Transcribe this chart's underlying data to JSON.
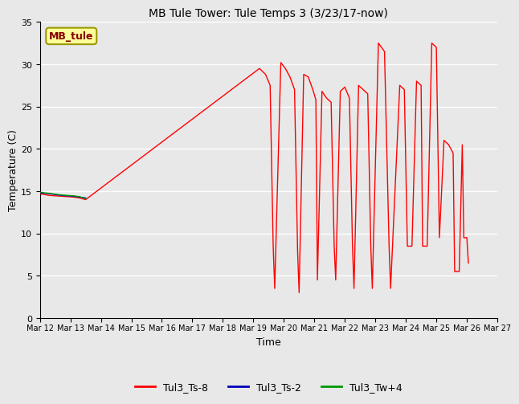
{
  "title": "MB Tule Tower: Tule Temps 3 (3/23/17-now)",
  "xlabel": "Time",
  "ylabel": "Temperature (C)",
  "ylim": [
    0,
    35
  ],
  "background_color": "#e8e8e8",
  "grid_color": "#ffffff",
  "annotation_box_text": "MB_tule",
  "annotation_box_color": "#ffff99",
  "annotation_box_edge": "#999900",
  "x_tick_labels": [
    "Mar 12",
    "Mar 13",
    "Mar 14",
    "Mar 15",
    "Mar 16",
    "Mar 17",
    "Mar 18",
    "Mar 19",
    "Mar 20",
    "Mar 21",
    "Mar 22",
    "Mar 23",
    "Mar 24",
    "Mar 25",
    "Mar 26",
    "Mar 27"
  ],
  "legend_labels": [
    "Tul3_Ts-8",
    "Tul3_Ts-2",
    "Tul3_Tw+4"
  ],
  "legend_colors": [
    "#ff0000",
    "#0000bb",
    "#009900"
  ],
  "ts8_x": [
    0.0,
    0.15,
    0.3,
    0.5,
    0.7,
    0.9,
    1.1,
    1.3,
    1.5,
    7.2,
    7.4,
    7.55,
    7.65,
    7.7,
    7.9,
    8.05,
    8.2,
    8.35,
    8.45,
    8.5,
    8.65,
    8.8,
    8.95,
    9.05,
    9.1,
    9.25,
    9.4,
    9.55,
    9.65,
    9.7,
    9.85,
    10.0,
    10.15,
    10.25,
    10.3,
    10.45,
    10.6,
    10.75,
    10.85,
    10.9,
    11.1,
    11.3,
    11.45,
    11.5,
    11.8,
    11.95,
    12.05,
    12.2,
    12.35,
    12.5,
    12.55,
    12.7,
    12.85,
    13.0,
    13.1,
    13.25,
    13.4,
    13.55,
    13.6,
    13.75,
    13.85,
    13.9,
    14.0,
    14.05
  ],
  "ts8_y": [
    14.7,
    14.6,
    14.5,
    14.45,
    14.4,
    14.35,
    14.3,
    14.2,
    14.0,
    29.5,
    28.8,
    27.5,
    8.5,
    3.5,
    30.2,
    29.5,
    28.5,
    27.0,
    8.0,
    3.0,
    28.8,
    28.5,
    27.0,
    25.8,
    4.5,
    26.8,
    26.0,
    25.5,
    8.5,
    4.5,
    26.8,
    27.3,
    26.0,
    8.5,
    3.5,
    27.5,
    27.0,
    26.5,
    8.5,
    3.5,
    32.5,
    31.5,
    8.5,
    3.5,
    27.5,
    27.0,
    8.5,
    8.5,
    28.0,
    27.5,
    8.5,
    8.5,
    32.5,
    32.0,
    9.5,
    21.0,
    20.5,
    19.5,
    5.5,
    5.5,
    20.5,
    9.5,
    9.5,
    6.5
  ],
  "ts2_x": [
    0.0,
    0.15,
    0.3,
    0.5,
    0.7,
    0.9,
    1.1,
    1.3,
    1.5
  ],
  "ts2_y": [
    14.8,
    14.75,
    14.7,
    14.6,
    14.5,
    14.45,
    14.4,
    14.3,
    14.2
  ],
  "tw4_x": [
    0.0,
    0.15,
    0.3,
    0.5,
    0.7,
    0.9,
    1.1,
    1.3,
    1.5
  ],
  "tw4_y": [
    14.9,
    14.8,
    14.75,
    14.65,
    14.55,
    14.5,
    14.45,
    14.35,
    14.1
  ]
}
